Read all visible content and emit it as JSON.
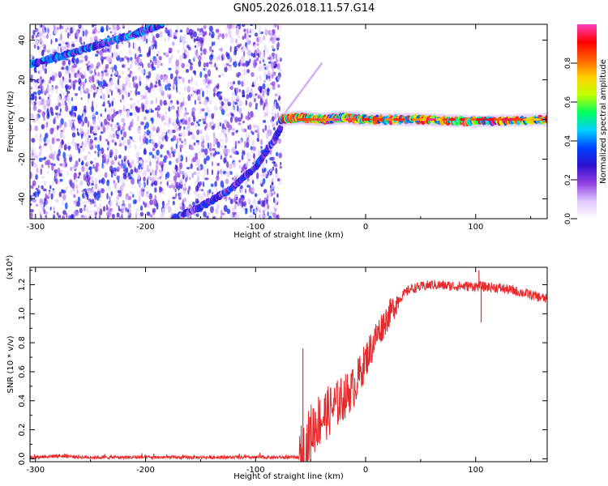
{
  "title": "GN05.2026.018.11.57.G14",
  "chart_data": [
    {
      "type": "heatmap",
      "panel": "top",
      "xlabel": "Height of straight line (km)",
      "ylabel": "Frequency (Hz)",
      "xlim": [
        -305,
        165
      ],
      "ylim": [
        -50,
        48
      ],
      "xticks": [
        -300,
        -200,
        -100,
        0,
        100
      ],
      "xtick_labels": [
        "-300",
        "-200",
        "-100",
        "0",
        "100"
      ],
      "yticks": [
        -40,
        -20,
        0,
        20,
        40
      ],
      "ytick_labels": [
        "-40",
        "-20",
        "0",
        "20",
        "40"
      ],
      "colorbar": {
        "label": "Normalized spectral amplitude",
        "range": [
          0,
          1
        ],
        "ticks": [
          0.0,
          0.2,
          0.4,
          0.6,
          0.8
        ],
        "tick_labels": [
          "0.0",
          "0.2",
          "0.4",
          "0.6",
          "0.8"
        ],
        "colormap": [
          "#ffffff",
          "#e0c8ff",
          "#9040e0",
          "#3010d0",
          "#0040ff",
          "#00d0ff",
          "#00ff60",
          "#c0ff00",
          "#ffd000",
          "#ff6000",
          "#ff0000",
          "#ff40c0"
        ]
      },
      "ridges": [
        {
          "points": [
            [
              -305,
              28
            ],
            [
              -270,
              33
            ],
            [
              -240,
              38
            ],
            [
              -210,
              43
            ],
            [
              -185,
              48
            ]
          ],
          "amplitude": 0.45
        },
        {
          "points": [
            [
              -175,
              -50
            ],
            [
              -150,
              -44
            ],
            [
              -125,
              -36
            ],
            [
              -100,
              -24
            ],
            [
              -85,
              -12
            ],
            [
              -77,
              -4
            ]
          ],
          "amplitude": 0.35
        },
        {
          "points": [
            [
              -77,
              0
            ],
            [
              -60,
              1
            ],
            [
              -40,
              0
            ],
            [
              -20,
              1
            ],
            [
              0,
              0
            ],
            [
              50,
              0
            ],
            [
              100,
              -1
            ],
            [
              165,
              0
            ]
          ],
          "amplitude": 0.9
        }
      ]
    },
    {
      "type": "line",
      "panel": "bottom",
      "xlabel": "Height of straight line (km)",
      "ylabel": "SNR (10 * v/v)",
      "y_multiplier": "(x10⁴)",
      "xlim": [
        -305,
        165
      ],
      "ylim": [
        -0.02,
        1.32
      ],
      "xticks": [
        -300,
        -200,
        -100,
        0,
        100
      ],
      "xtick_labels": [
        "-300",
        "-200",
        "-100",
        "0",
        "100"
      ],
      "yticks": [
        0.0,
        0.2,
        0.4,
        0.6,
        0.8,
        1.0,
        1.2
      ],
      "ytick_labels": [
        "0.0",
        "0.2",
        "0.4",
        "0.6",
        "0.8",
        "1.0",
        "1.2"
      ],
      "series": [
        {
          "color": "#e8282a",
          "x": [
            -305,
            -280,
            -250,
            -200,
            -150,
            -100,
            -80,
            -60,
            -55,
            -50,
            -45,
            -40,
            -30,
            -20,
            -10,
            0,
            10,
            20,
            30,
            40,
            60,
            80,
            100,
            120,
            140,
            165
          ],
          "y": [
            0.01,
            0.02,
            0.01,
            0.01,
            0.01,
            0.01,
            0.01,
            0.01,
            0.05,
            0.18,
            0.25,
            0.28,
            0.35,
            0.42,
            0.5,
            0.68,
            0.85,
            0.98,
            1.1,
            1.17,
            1.2,
            1.19,
            1.19,
            1.18,
            1.15,
            1.1
          ]
        }
      ],
      "annotations": [
        {
          "x": -57,
          "y": 0.76,
          "kind": "spike"
        },
        {
          "x": 103,
          "y": 1.3,
          "kind": "spike"
        },
        {
          "x": 105,
          "y": 0.94,
          "kind": "dip"
        }
      ]
    }
  ]
}
